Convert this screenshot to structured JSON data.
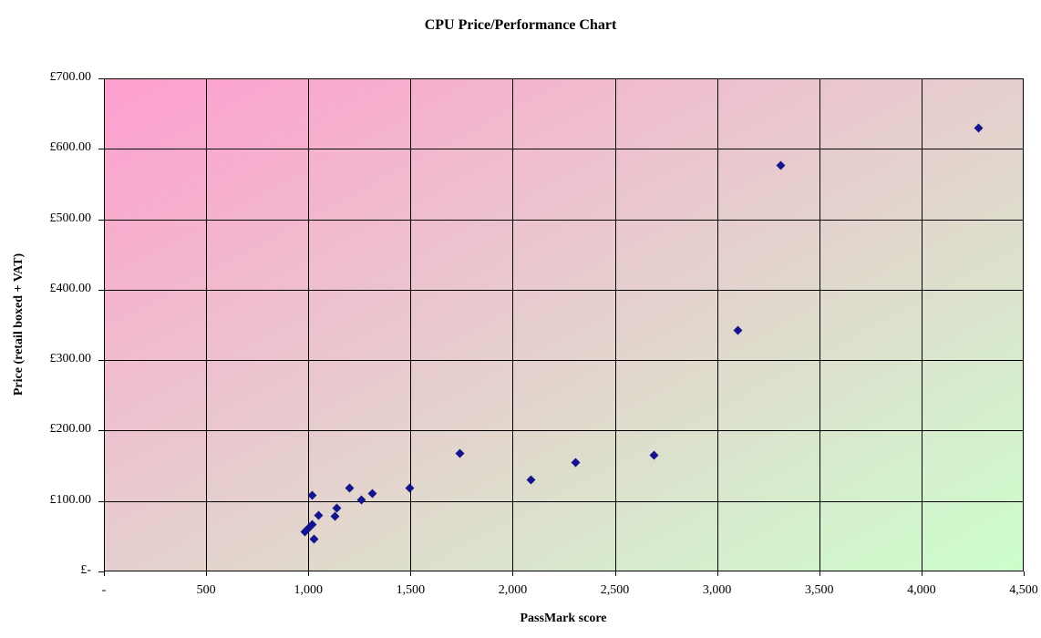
{
  "chart_data": {
    "type": "scatter",
    "title": "CPU Price/Performance Chart",
    "xlabel": "PassMark score",
    "ylabel": "Price (retail boxed + VAT)",
    "xlim": [
      0,
      4500
    ],
    "ylim": [
      0,
      700
    ],
    "grid": true,
    "legend": false,
    "marker": {
      "shape": "diamond",
      "color": "#14148C"
    },
    "plot_background": {
      "gradient_direction": "top-left to bottom-right",
      "from": "#FF9FCF",
      "to": "#CCFFCC"
    },
    "x_ticks": [
      {
        "value": 0,
        "label": "-"
      },
      {
        "value": 500,
        "label": "500"
      },
      {
        "value": 1000,
        "label": "1,000"
      },
      {
        "value": 1500,
        "label": "1,500"
      },
      {
        "value": 2000,
        "label": "2,000"
      },
      {
        "value": 2500,
        "label": "2,500"
      },
      {
        "value": 3000,
        "label": "3,000"
      },
      {
        "value": 3500,
        "label": "3,500"
      },
      {
        "value": 4000,
        "label": "4,000"
      },
      {
        "value": 4500,
        "label": "4,500"
      }
    ],
    "y_ticks": [
      {
        "value": 0,
        "label": "£-"
      },
      {
        "value": 100,
        "label": "£100.00"
      },
      {
        "value": 200,
        "label": "£200.00"
      },
      {
        "value": 300,
        "label": "£300.00"
      },
      {
        "value": 400,
        "label": "£400.00"
      },
      {
        "value": 500,
        "label": "£500.00"
      },
      {
        "value": 600,
        "label": "£600.00"
      },
      {
        "value": 700,
        "label": "£700.00"
      }
    ],
    "points": [
      {
        "x": 985,
        "y": 56
      },
      {
        "x": 1000,
        "y": 62
      },
      {
        "x": 1020,
        "y": 66
      },
      {
        "x": 1020,
        "y": 108
      },
      {
        "x": 1030,
        "y": 46
      },
      {
        "x": 1050,
        "y": 79
      },
      {
        "x": 1130,
        "y": 78
      },
      {
        "x": 1140,
        "y": 90
      },
      {
        "x": 1200,
        "y": 118
      },
      {
        "x": 1260,
        "y": 101
      },
      {
        "x": 1315,
        "y": 110
      },
      {
        "x": 1495,
        "y": 118
      },
      {
        "x": 1740,
        "y": 167
      },
      {
        "x": 2090,
        "y": 130
      },
      {
        "x": 2310,
        "y": 155
      },
      {
        "x": 2690,
        "y": 165
      },
      {
        "x": 3100,
        "y": 342
      },
      {
        "x": 3310,
        "y": 577
      },
      {
        "x": 4280,
        "y": 630
      }
    ]
  }
}
